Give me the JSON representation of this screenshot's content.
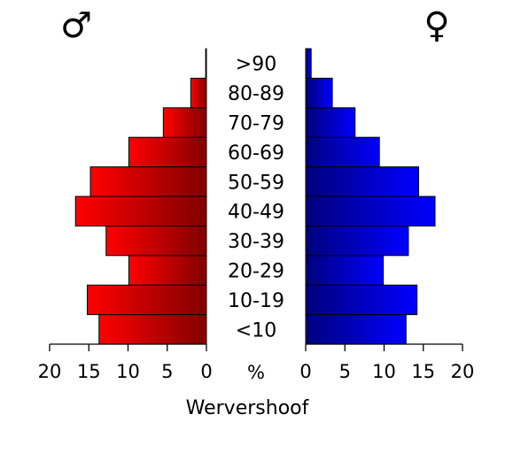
{
  "chart_data": {
    "type": "bar",
    "subtype": "population-pyramid",
    "title": "Wervershoof",
    "center_unit_label": "%",
    "categories": [
      "<10",
      "10-19",
      "20-29",
      "30-39",
      "40-49",
      "50-59",
      "60-69",
      "70-79",
      "80-89",
      ">90"
    ],
    "series": [
      {
        "symbol": "♂",
        "side": "left",
        "color": "#ff0000",
        "color_dark": "#800000",
        "values": [
          13.7,
          15.2,
          9.9,
          12.8,
          16.7,
          14.8,
          9.9,
          5.5,
          2.0,
          0.1
        ]
      },
      {
        "symbol": "♀",
        "side": "right",
        "color": "#0000ff",
        "color_dark": "#00007d",
        "values": [
          12.8,
          14.2,
          9.9,
          13.1,
          16.5,
          14.4,
          9.4,
          6.3,
          3.4,
          0.7
        ]
      }
    ],
    "xlim": [
      0,
      20
    ],
    "xticks": [
      "20",
      "15",
      "10",
      "5",
      "0",
      "5",
      "10",
      "15",
      "20"
    ],
    "grid": false,
    "legend": "none"
  }
}
